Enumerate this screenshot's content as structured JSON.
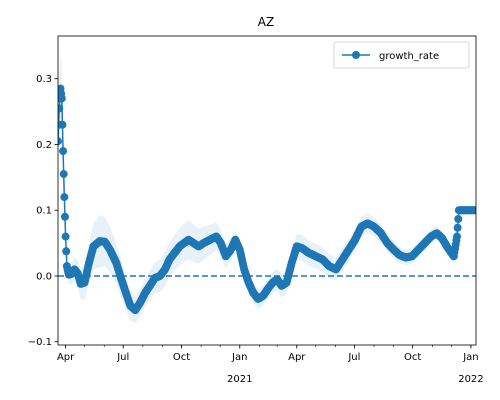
{
  "chart_data": {
    "type": "line",
    "title": "AZ",
    "x_start": "2020-03-20",
    "x_end": "2022-01-09",
    "ylim": [
      -0.105,
      0.365
    ],
    "yticks": [
      -0.1,
      0.0,
      0.1,
      0.2,
      0.3
    ],
    "ytick_labels": [
      "−0.1",
      "0.0",
      "0.1",
      "0.2",
      "0.3"
    ],
    "xticks": [
      {
        "date": "2020-04-01",
        "label": "Apr",
        "sub": ""
      },
      {
        "date": "2020-07-01",
        "label": "Jul",
        "sub": ""
      },
      {
        "date": "2020-10-01",
        "label": "Oct",
        "sub": ""
      },
      {
        "date": "2021-01-01",
        "label": "Jan",
        "sub": "2021"
      },
      {
        "date": "2021-04-01",
        "label": "Apr",
        "sub": ""
      },
      {
        "date": "2021-07-01",
        "label": "Jul",
        "sub": ""
      },
      {
        "date": "2021-10-01",
        "label": "Oct",
        "sub": ""
      },
      {
        "date": "2022-01-01",
        "label": "Jan",
        "sub": "2022"
      }
    ],
    "reference_line": {
      "y": 0.0,
      "style": "dashed"
    },
    "legend": {
      "position": "top-right",
      "entries": [
        "growth_rate"
      ]
    },
    "grid": false,
    "series": [
      {
        "name": "growth_rate",
        "color": "#1f77b4",
        "band_color": "#1f77b4",
        "points": [
          [
            "2020-03-20",
            0.205
          ],
          [
            "2020-03-22",
            0.255
          ],
          [
            "2020-03-24",
            0.285
          ],
          [
            "2020-03-26",
            0.27
          ],
          [
            "2020-03-28",
            0.19
          ],
          [
            "2020-03-30",
            0.12
          ],
          [
            "2020-04-01",
            0.06
          ],
          [
            "2020-04-03",
            0.015
          ],
          [
            "2020-04-06",
            0.002
          ],
          [
            "2020-04-10",
            0.003
          ],
          [
            "2020-04-15",
            0.01
          ],
          [
            "2020-04-20",
            0.004
          ],
          [
            "2020-04-25",
            -0.012
          ],
          [
            "2020-05-01",
            -0.01
          ],
          [
            "2020-05-08",
            0.02
          ],
          [
            "2020-05-15",
            0.045
          ],
          [
            "2020-05-25",
            0.053
          ],
          [
            "2020-06-02",
            0.052
          ],
          [
            "2020-06-10",
            0.04
          ],
          [
            "2020-06-20",
            0.02
          ],
          [
            "2020-06-28",
            -0.005
          ],
          [
            "2020-07-05",
            -0.025
          ],
          [
            "2020-07-12",
            -0.045
          ],
          [
            "2020-07-20",
            -0.052
          ],
          [
            "2020-07-28",
            -0.04
          ],
          [
            "2020-08-05",
            -0.025
          ],
          [
            "2020-08-12",
            -0.015
          ],
          [
            "2020-08-20",
            -0.003
          ],
          [
            "2020-08-28",
            0.0
          ],
          [
            "2020-09-05",
            0.01
          ],
          [
            "2020-09-12",
            0.025
          ],
          [
            "2020-09-20",
            0.035
          ],
          [
            "2020-09-28",
            0.045
          ],
          [
            "2020-10-05",
            0.05
          ],
          [
            "2020-10-12",
            0.055
          ],
          [
            "2020-10-20",
            0.05
          ],
          [
            "2020-10-28",
            0.045
          ],
          [
            "2020-11-05",
            0.05
          ],
          [
            "2020-11-15",
            0.055
          ],
          [
            "2020-11-25",
            0.06
          ],
          [
            "2020-12-02",
            0.05
          ],
          [
            "2020-12-10",
            0.03
          ],
          [
            "2020-12-18",
            0.04
          ],
          [
            "2020-12-25",
            0.055
          ],
          [
            "2021-01-01",
            0.04
          ],
          [
            "2021-01-08",
            0.01
          ],
          [
            "2021-01-15",
            -0.01
          ],
          [
            "2021-01-22",
            -0.025
          ],
          [
            "2021-01-30",
            -0.035
          ],
          [
            "2021-02-07",
            -0.03
          ],
          [
            "2021-02-14",
            -0.02
          ],
          [
            "2021-02-22",
            -0.01
          ],
          [
            "2021-03-01",
            -0.005
          ],
          [
            "2021-03-08",
            -0.015
          ],
          [
            "2021-03-16",
            -0.01
          ],
          [
            "2021-03-24",
            0.02
          ],
          [
            "2021-04-01",
            0.045
          ],
          [
            "2021-04-10",
            0.042
          ],
          [
            "2021-04-20",
            0.035
          ],
          [
            "2021-05-01",
            0.03
          ],
          [
            "2021-05-12",
            0.025
          ],
          [
            "2021-05-22",
            0.015
          ],
          [
            "2021-06-02",
            0.01
          ],
          [
            "2021-06-12",
            0.025
          ],
          [
            "2021-06-22",
            0.04
          ],
          [
            "2021-07-02",
            0.055
          ],
          [
            "2021-07-12",
            0.075
          ],
          [
            "2021-07-22",
            0.08
          ],
          [
            "2021-08-01",
            0.075
          ],
          [
            "2021-08-12",
            0.065
          ],
          [
            "2021-08-22",
            0.05
          ],
          [
            "2021-09-01",
            0.04
          ],
          [
            "2021-09-10",
            0.032
          ],
          [
            "2021-09-20",
            0.028
          ],
          [
            "2021-09-30",
            0.03
          ],
          [
            "2021-10-10",
            0.04
          ],
          [
            "2021-10-20",
            0.05
          ],
          [
            "2021-10-30",
            0.06
          ],
          [
            "2021-11-08",
            0.065
          ],
          [
            "2021-11-16",
            0.058
          ],
          [
            "2021-11-24",
            0.045
          ],
          [
            "2021-12-01",
            0.035
          ],
          [
            "2021-12-05",
            0.03
          ],
          [
            "2021-12-10",
            0.06
          ],
          [
            "2021-12-13",
            0.1
          ],
          [
            "2021-12-20",
            0.1
          ],
          [
            "2021-12-28",
            0.1
          ],
          [
            "2022-01-05",
            0.1
          ],
          [
            "2022-01-09",
            0.1
          ]
        ],
        "band_halfwidth": [
          [
            "2020-03-20",
            0.03
          ],
          [
            "2020-03-24",
            0.06
          ],
          [
            "2020-03-28",
            0.035
          ],
          [
            "2020-04-03",
            0.012
          ],
          [
            "2020-05-25",
            0.04
          ],
          [
            "2020-07-20",
            0.02
          ],
          [
            "2020-10-12",
            0.03
          ],
          [
            "2020-12-25",
            0.015
          ],
          [
            "2021-02-07",
            0.015
          ],
          [
            "2021-04-10",
            0.02
          ],
          [
            "2021-07-22",
            0.015
          ],
          [
            "2021-09-20",
            0.012
          ],
          [
            "2021-12-05",
            0.01
          ],
          [
            "2021-12-13",
            0.005
          ],
          [
            "2022-01-09",
            0.005
          ]
        ]
      }
    ]
  }
}
